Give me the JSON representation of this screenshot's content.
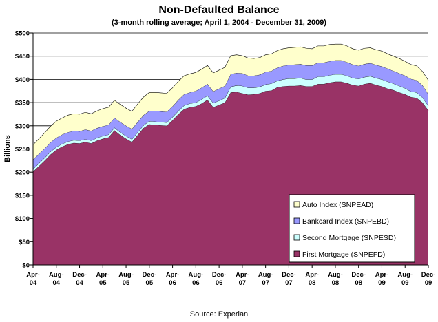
{
  "chart_data": {
    "type": "area",
    "stacked": true,
    "title": "Non-Defaulted Balance",
    "subtitle": "(3-month rolling average; April 1, 2004 - December 31, 2009)",
    "ylabel": "Billions",
    "xlabel": "",
    "ylim": [
      0,
      500
    ],
    "y_ticks": [
      "$0",
      "$50",
      "$100",
      "$150",
      "$200",
      "$250",
      "$300",
      "$350",
      "$400",
      "$450",
      "$500"
    ],
    "grid": "horizontal",
    "legend_position": "bottom-right",
    "x_tick_labels": [
      [
        "Apr-",
        "04"
      ],
      [
        "Aug-",
        "04"
      ],
      [
        "Dec-",
        "04"
      ],
      [
        "Apr-",
        "05"
      ],
      [
        "Aug-",
        "05"
      ],
      [
        "Dec-",
        "05"
      ],
      [
        "Apr-",
        "06"
      ],
      [
        "Aug-",
        "06"
      ],
      [
        "Dec-",
        "06"
      ],
      [
        "Apr-",
        "07"
      ],
      [
        "Aug-",
        "07"
      ],
      [
        "Dec-",
        "07"
      ],
      [
        "Apr-",
        "08"
      ],
      [
        "Aug-",
        "08"
      ],
      [
        "Dec-",
        "08"
      ],
      [
        "Apr-",
        "09"
      ],
      [
        "Aug-",
        "09"
      ],
      [
        "Dec-",
        "09"
      ]
    ],
    "x_months": [
      "Apr-04",
      "May-04",
      "Jun-04",
      "Jul-04",
      "Aug-04",
      "Sep-04",
      "Oct-04",
      "Nov-04",
      "Dec-04",
      "Jan-05",
      "Feb-05",
      "Mar-05",
      "Apr-05",
      "May-05",
      "Jun-05",
      "Jul-05",
      "Aug-05",
      "Sep-05",
      "Oct-05",
      "Nov-05",
      "Dec-05",
      "Jan-06",
      "Feb-06",
      "Mar-06",
      "Apr-06",
      "May-06",
      "Jun-06",
      "Jul-06",
      "Aug-06",
      "Sep-06",
      "Oct-06",
      "Nov-06",
      "Dec-06",
      "Jan-07",
      "Feb-07",
      "Mar-07",
      "Apr-07",
      "May-07",
      "Jun-07",
      "Jul-07",
      "Aug-07",
      "Sep-07",
      "Oct-07",
      "Nov-07",
      "Dec-07",
      "Jan-08",
      "Feb-08",
      "Mar-08",
      "Apr-08",
      "May-08",
      "Jun-08",
      "Jul-08",
      "Aug-08",
      "Sep-08",
      "Oct-08",
      "Nov-08",
      "Dec-08",
      "Jan-09",
      "Feb-09",
      "Mar-09",
      "Apr-09",
      "May-09",
      "Jun-09",
      "Jul-09",
      "Aug-09",
      "Sep-09",
      "Oct-09",
      "Nov-09",
      "Dec-09"
    ],
    "series": [
      {
        "name": "First Mortgage (SNPEFD)",
        "color": "#993366",
        "values": [
          201,
          213,
          225,
          238,
          248,
          255,
          260,
          263,
          262,
          265,
          262,
          268,
          272,
          275,
          290,
          280,
          272,
          265,
          280,
          295,
          303,
          302,
          301,
          300,
          312,
          325,
          336,
          340,
          342,
          348,
          356,
          340,
          345,
          350,
          372,
          373,
          370,
          367,
          368,
          370,
          375,
          376,
          383,
          385,
          386,
          386,
          387,
          385,
          385,
          390,
          390,
          393,
          395,
          395,
          392,
          388,
          386,
          390,
          392,
          388,
          385,
          380,
          377,
          372,
          368,
          362,
          360,
          350,
          333
        ]
      },
      {
        "name": "Second Mortgage (SNPESD)",
        "color": "#ccffff",
        "values": [
          6,
          6,
          6,
          6,
          6,
          6,
          6,
          6,
          6,
          6,
          6,
          6,
          6,
          6,
          6,
          6,
          6,
          6,
          6,
          6,
          7,
          7,
          7,
          7,
          7,
          7,
          8,
          8,
          8,
          9,
          9,
          9,
          9,
          10,
          12,
          14,
          16,
          15,
          14,
          14,
          14,
          15,
          14,
          15,
          16,
          16,
          16,
          15,
          15,
          16,
          16,
          16,
          16,
          16,
          16,
          15,
          15,
          15,
          15,
          15,
          15,
          15,
          14,
          14,
          13,
          12,
          12,
          11,
          10
        ]
      },
      {
        "name": "Bankcard Index (SNPEBD)",
        "color": "#9999ff",
        "values": [
          20,
          20,
          20,
          20,
          20,
          20,
          20,
          20,
          20,
          21,
          21,
          21,
          21,
          21,
          21,
          22,
          22,
          22,
          22,
          22,
          22,
          23,
          23,
          23,
          23,
          24,
          24,
          24,
          25,
          25,
          25,
          25,
          26,
          26,
          27,
          27,
          27,
          26,
          26,
          26,
          27,
          27,
          28,
          29,
          29,
          30,
          30,
          30,
          30,
          30,
          30,
          30,
          30,
          30,
          29,
          29,
          28,
          28,
          28,
          28,
          28,
          28,
          27,
          27,
          27,
          27,
          26,
          26,
          25
        ]
      },
      {
        "name": "Auto Index (SNPEAD)",
        "color": "#ffffcc",
        "values": [
          32,
          33,
          34,
          35,
          36,
          36,
          37,
          37,
          37,
          37,
          37,
          37,
          38,
          38,
          38,
          38,
          38,
          38,
          39,
          39,
          40,
          40,
          40,
          40,
          40,
          40,
          40,
          40,
          40,
          40,
          40,
          40,
          40,
          40,
          40,
          39,
          38,
          38,
          37,
          37,
          37,
          37,
          37,
          37,
          37,
          37,
          37,
          37,
          36,
          36,
          36,
          36,
          35,
          35,
          35,
          34,
          34,
          34,
          33,
          33,
          33,
          32,
          32,
          32,
          31,
          31,
          31,
          30,
          30
        ]
      }
    ]
  },
  "source": "Source:  Experian"
}
